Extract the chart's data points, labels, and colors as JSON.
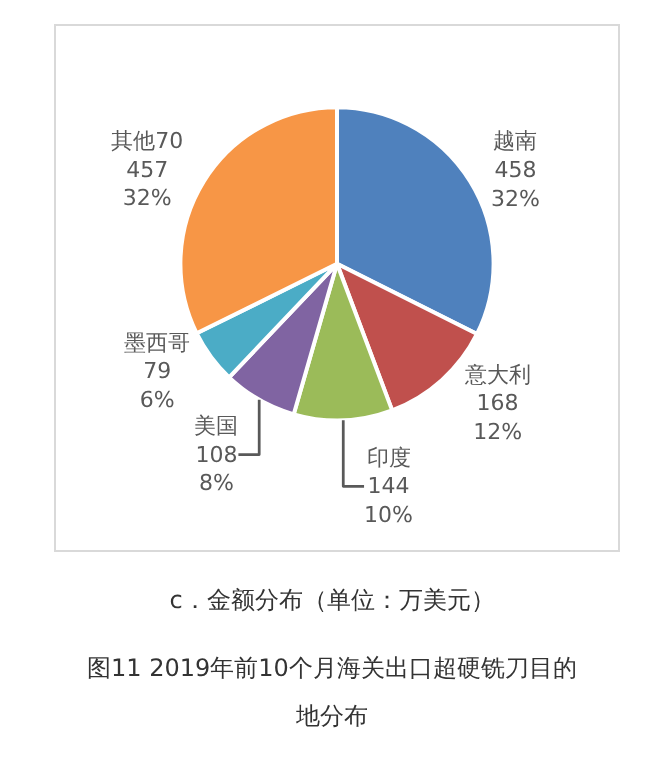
{
  "chart_data": {
    "type": "pie",
    "subtitle": "c．金额分布（单位：万美元）",
    "annotations": [
      "图11  2019年前10个月海关出口超硬铣刀目的地分布"
    ],
    "categories": [
      "越南",
      "意大利",
      "印度",
      "美国",
      "墨西哥",
      "其他70"
    ],
    "values": [
      458,
      168,
      144,
      108,
      79,
      457
    ],
    "value_labels": [
      "458\n32%",
      "168\n12%",
      "144\n10%",
      "108\n8%",
      "79\n6%",
      "457\n32%"
    ],
    "colors": [
      "#4f81bd",
      "#c0504d",
      "#9bbb59",
      "#8064a2",
      "#4bacc6",
      "#f79646"
    ],
    "legend": false
  }
}
